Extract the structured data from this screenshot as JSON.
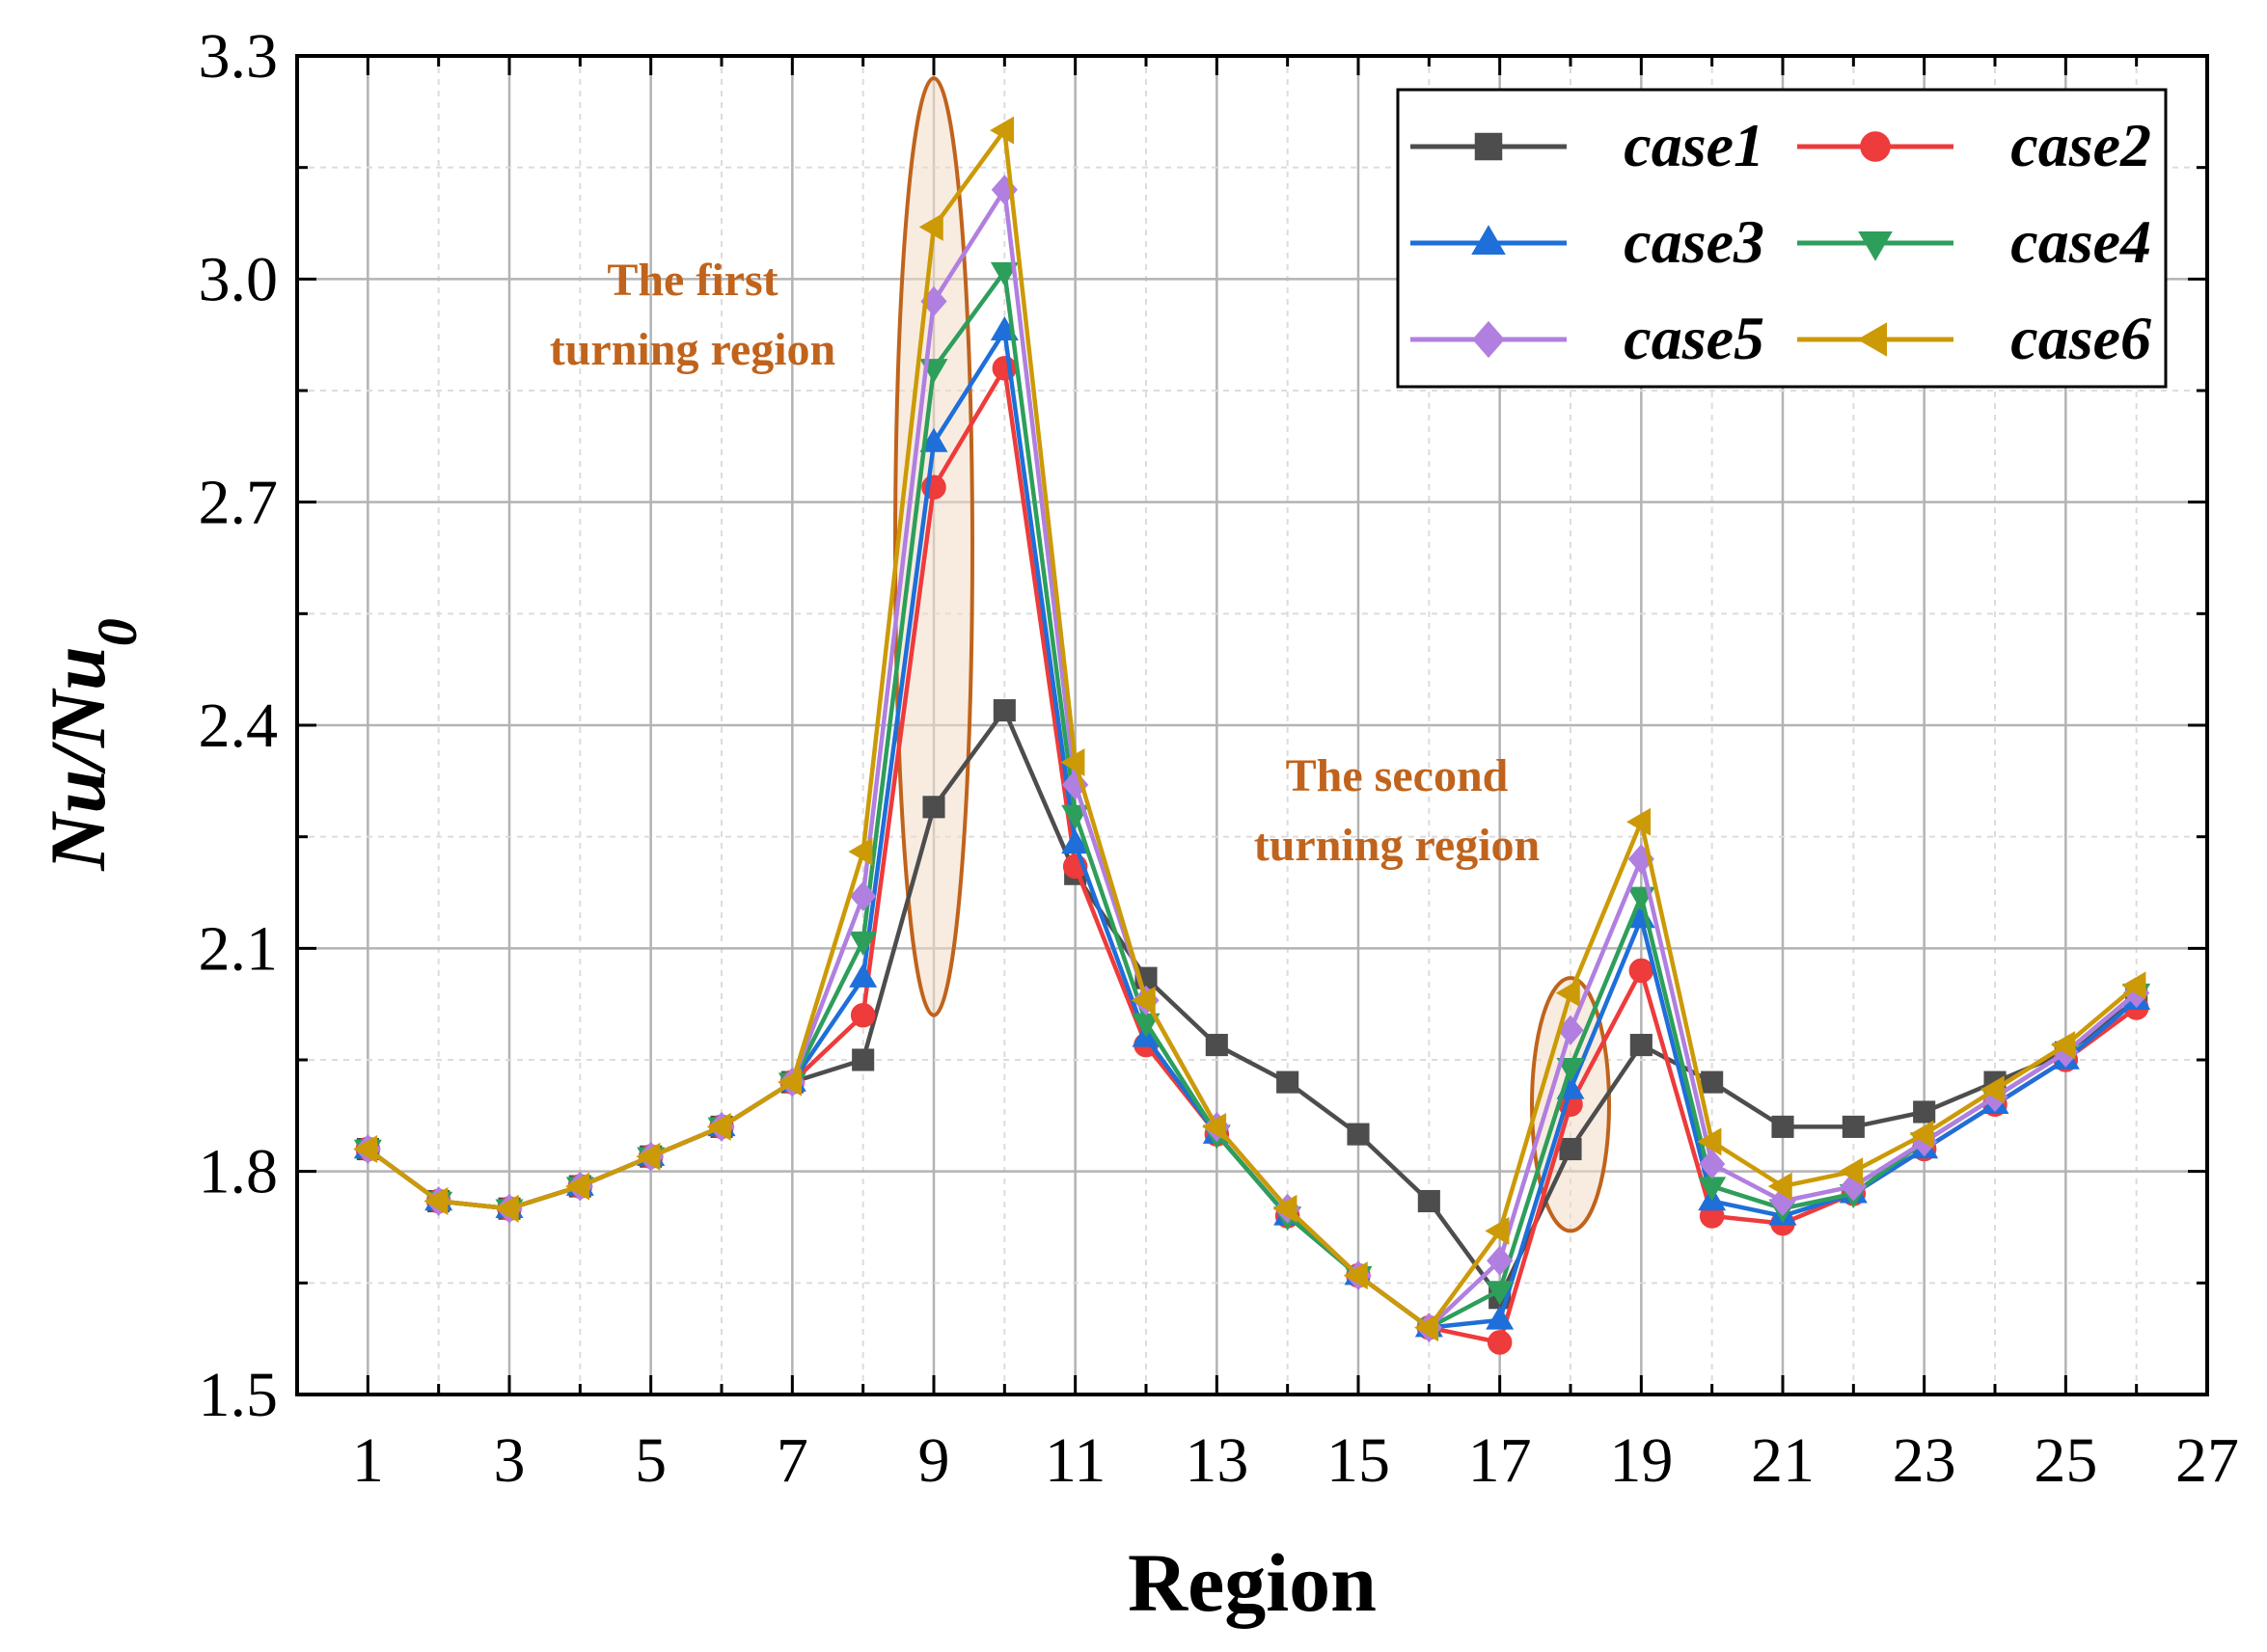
{
  "chart_data": {
    "type": "line",
    "title": "",
    "xlabel": "Region",
    "ylabel": {
      "base": "Nu/Nu",
      "subscript": "0"
    },
    "xlim": [
      0,
      27
    ],
    "ylim": [
      1.5,
      3.3
    ],
    "x_ticks": [
      1,
      3,
      5,
      7,
      9,
      11,
      13,
      15,
      17,
      19,
      21,
      23,
      25,
      27
    ],
    "y_ticks": [
      1.5,
      1.8,
      2.1,
      2.4,
      2.7,
      3.0,
      3.3
    ],
    "y_tick_labels": [
      "1.5",
      "1.8",
      "2.1",
      "2.4",
      "2.7",
      "3.0",
      "3.3"
    ],
    "grid": true,
    "legend_position": "top-right",
    "x": [
      1,
      2,
      3,
      4,
      5,
      6,
      7,
      8,
      9,
      10,
      11,
      12,
      13,
      14,
      15,
      16,
      17,
      18,
      19,
      20,
      21,
      22,
      23,
      24,
      25,
      26
    ],
    "series": [
      {
        "name": "case1",
        "color": "#4d4d4d",
        "marker": "square",
        "values": [
          1.83,
          1.76,
          1.75,
          1.78,
          1.82,
          1.86,
          1.92,
          1.95,
          2.29,
          2.42,
          2.2,
          2.06,
          1.97,
          1.92,
          1.85,
          1.76,
          1.63,
          1.83,
          1.97,
          1.92,
          1.86,
          1.86,
          1.88,
          1.92,
          1.96,
          2.03
        ]
      },
      {
        "name": "case2",
        "color": "#ee3b3b",
        "marker": "circle",
        "values": [
          1.83,
          1.76,
          1.75,
          1.78,
          1.82,
          1.86,
          1.92,
          2.01,
          2.72,
          2.88,
          2.21,
          1.97,
          1.85,
          1.74,
          1.66,
          1.59,
          1.57,
          1.89,
          2.07,
          1.74,
          1.73,
          1.77,
          1.83,
          1.89,
          1.95,
          2.02
        ]
      },
      {
        "name": "case3",
        "color": "#1e6fd9",
        "marker": "triangle-up",
        "values": [
          1.83,
          1.76,
          1.75,
          1.78,
          1.82,
          1.86,
          1.92,
          2.06,
          2.78,
          2.93,
          2.24,
          1.98,
          1.85,
          1.74,
          1.66,
          1.59,
          1.6,
          1.91,
          2.14,
          1.76,
          1.74,
          1.77,
          1.83,
          1.89,
          1.95,
          2.03
        ]
      },
      {
        "name": "case4",
        "color": "#2e9e5b",
        "marker": "triangle-down",
        "values": [
          1.83,
          1.76,
          1.75,
          1.78,
          1.82,
          1.86,
          1.92,
          2.11,
          2.88,
          3.01,
          2.28,
          2.0,
          1.85,
          1.74,
          1.66,
          1.59,
          1.64,
          1.94,
          2.17,
          1.78,
          1.75,
          1.77,
          1.84,
          1.9,
          1.96,
          2.04
        ]
      },
      {
        "name": "case5",
        "color": "#b07fe0",
        "marker": "diamond",
        "values": [
          1.83,
          1.76,
          1.75,
          1.78,
          1.82,
          1.86,
          1.92,
          2.17,
          2.97,
          3.12,
          2.32,
          2.03,
          1.86,
          1.75,
          1.66,
          1.59,
          1.68,
          1.99,
          2.22,
          1.81,
          1.76,
          1.78,
          1.84,
          1.9,
          1.96,
          2.04
        ]
      },
      {
        "name": "case6",
        "color": "#cc9a06",
        "marker": "triangle-left",
        "values": [
          1.83,
          1.76,
          1.75,
          1.78,
          1.82,
          1.86,
          1.92,
          2.23,
          3.07,
          3.2,
          2.35,
          2.03,
          1.86,
          1.75,
          1.66,
          1.59,
          1.72,
          2.04,
          2.27,
          1.84,
          1.78,
          1.8,
          1.85,
          1.91,
          1.97,
          2.05
        ]
      }
    ],
    "annotations": [
      {
        "lines": [
          "The first",
          "turning region"
        ],
        "color": "#c0631c",
        "region_x": 9,
        "y_range": [
          2.01,
          3.27
        ]
      },
      {
        "lines": [
          "The second",
          "turning region"
        ],
        "color": "#c0631c",
        "region_x": 18,
        "y_range": [
          1.72,
          2.06
        ]
      }
    ]
  }
}
